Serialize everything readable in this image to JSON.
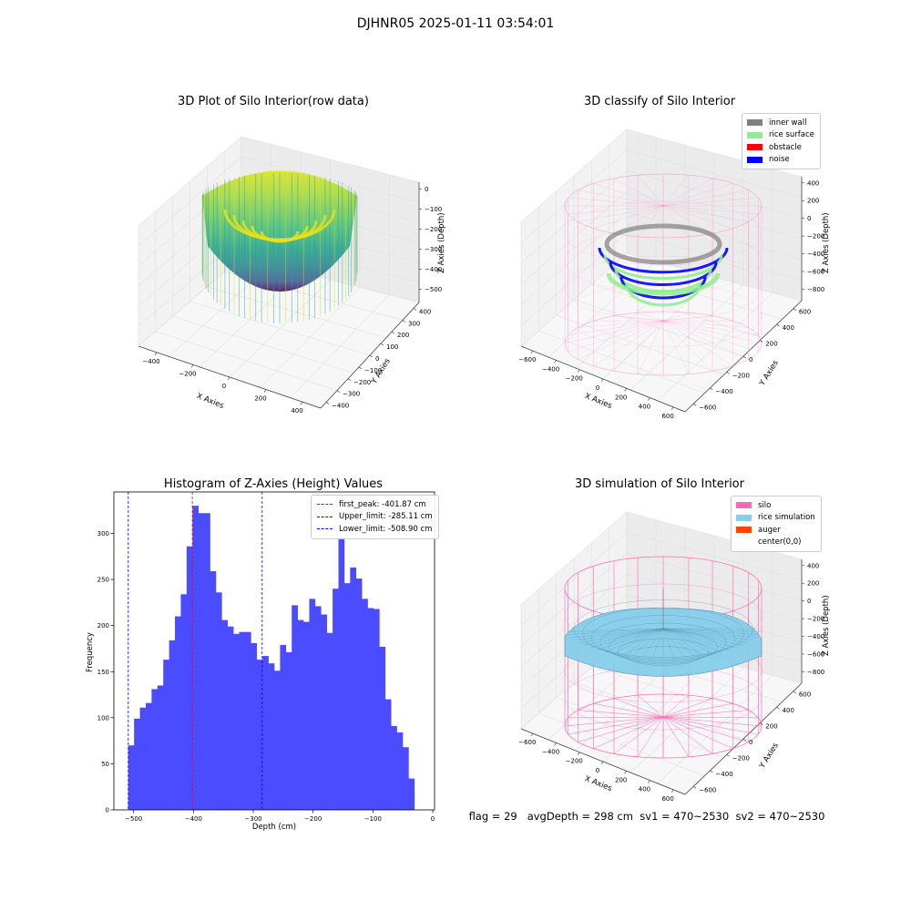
{
  "figure": {
    "suptitle": "DJHNR05 2025-01-11 03:54:01",
    "status": {
      "flag": "flag = 29",
      "avg_depth": "avgDepth = 298 cm",
      "sv1": "sv1 = 470~2530",
      "sv2": "sv2 = 470~2530"
    }
  },
  "colors": {
    "histogram_bar": "#4b4bff",
    "inner_wall": "#808080",
    "rice_surface": "#90ee90",
    "obstacle": "#ff0000",
    "noise": "#0000ff",
    "silo": "#ff69b4",
    "rice_simulation": "#87ceeb",
    "auger": "#ff4500",
    "first_peak_line": "#ff0000",
    "limit_lines": "#0000ff"
  },
  "chart_data": [
    {
      "type": "scatter",
      "subtype": "3d",
      "title": "3D Plot of Silo Interior(row data)",
      "xlabel": "X Axies",
      "ylabel": "Y Axies",
      "zlabel": "Z Axies (Depth)",
      "x_ticks": [
        "−400",
        "−200",
        "0",
        "200",
        "400"
      ],
      "y_ticks": [
        "−400",
        "−300",
        "−200",
        "−100",
        "0",
        "100",
        "200",
        "300",
        "400"
      ],
      "z_ticks": [
        "0",
        "−100",
        "−200",
        "−300",
        "−400",
        "−500"
      ],
      "xlim": [
        -500,
        500
      ],
      "ylim": [
        -450,
        450
      ],
      "zlim": [
        -540,
        20
      ],
      "colormap": "viridis",
      "grid": true
    },
    {
      "type": "scatter",
      "subtype": "3d",
      "title": "3D classify of Silo Interior",
      "xlabel": "X Axies",
      "ylabel": "Y Axies",
      "zlabel": "Z Axies (Depth)",
      "x_ticks": [
        "−600",
        "−400",
        "−200",
        "0",
        "200",
        "400",
        "600"
      ],
      "y_ticks": [
        "−600",
        "−400",
        "−200",
        "0",
        "200",
        "400",
        "600"
      ],
      "z_ticks": [
        "400",
        "200",
        "0",
        "−200",
        "−400",
        "−600",
        "−800"
      ],
      "legend": {
        "position": "top-right",
        "entries": [
          {
            "label": "inner wall",
            "color_key": "inner_wall"
          },
          {
            "label": "rice surface",
            "color_key": "rice_surface"
          },
          {
            "label": "obstacle",
            "color_key": "obstacle"
          },
          {
            "label": "noise",
            "color_key": "noise"
          }
        ]
      },
      "grid": true
    },
    {
      "type": "bar",
      "subtype": "histogram",
      "title": "Histogram of Z-Axies (Height) Values",
      "xlabel": "Depth (cm)",
      "ylabel": "Frequency",
      "xlim": [
        -533,
        3
      ],
      "ylim": [
        0,
        345
      ],
      "x_ticks": [
        -500,
        -400,
        -300,
        -200,
        -100,
        0
      ],
      "x_tick_labels": [
        "−500",
        "−400",
        "−300",
        "−200",
        "−100",
        "0"
      ],
      "y_ticks": [
        0,
        50,
        100,
        150,
        200,
        250,
        300
      ],
      "bin_start": -509,
      "bin_width": 9.76,
      "values": [
        70,
        99,
        111,
        116,
        131,
        135,
        163,
        184,
        210,
        234,
        286,
        330,
        322,
        322,
        259,
        236,
        206,
        199,
        191,
        193,
        193,
        181,
        163,
        167,
        159,
        151,
        179,
        171,
        222,
        206,
        204,
        229,
        221,
        212,
        192,
        240,
        296,
        246,
        263,
        251,
        229,
        219,
        218,
        177,
        120,
        91,
        84,
        68,
        34
      ],
      "vlines": [
        {
          "x": -401.87,
          "label": "first_peak: -401.87 cm",
          "color_key": "first_peak_line"
        },
        {
          "x": -285.11,
          "label": "Upper_limit: -285.11 cm",
          "color_key": "limit_lines"
        },
        {
          "x": -508.9,
          "label": "Lower_limit: -508.90 cm",
          "color_key": "limit_lines"
        }
      ],
      "legend_position": "top-right",
      "grid": false
    },
    {
      "type": "area",
      "subtype": "3d-surface",
      "title": "3D simulation of Silo Interior",
      "xlabel": "X Axies",
      "ylabel": "Y Axies",
      "zlabel": "Z Axies (Depth)",
      "x_ticks": [
        "−600",
        "−400",
        "−200",
        "0",
        "200",
        "400",
        "600"
      ],
      "y_ticks": [
        "−600",
        "−400",
        "−200",
        "0",
        "200",
        "400",
        "600"
      ],
      "z_ticks": [
        "400",
        "200",
        "0",
        "−200",
        "−400",
        "−600",
        "−800"
      ],
      "legend": {
        "position": "top-right",
        "entries": [
          {
            "label": "silo",
            "color_key": "silo"
          },
          {
            "label": "rice simulation",
            "color_key": "rice_simulation"
          },
          {
            "label": "auger",
            "color_key": "auger"
          },
          {
            "label": "center(0,0)",
            "color_key": ""
          }
        ]
      },
      "grid": true
    }
  ]
}
